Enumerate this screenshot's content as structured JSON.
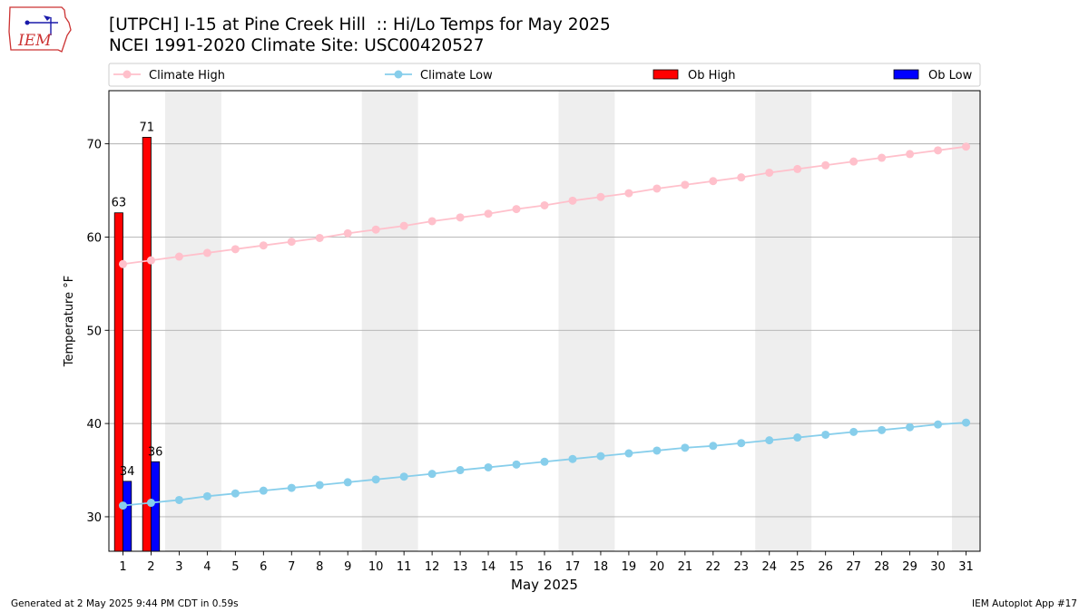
{
  "header": {
    "title_line1": "[UTPCH] I-15 at Pine Creek Hill  :: Hi/Lo Temps for May 2025",
    "title_line2": "NCEI 1991-2020 Climate Site: USC00420527",
    "logo_text": "IEM"
  },
  "footer": {
    "generated": "Generated at 2 May 2025 9:44 PM CDT in 0.59s",
    "app": "IEM Autoplot App #17"
  },
  "colors": {
    "climate_high": "#ffc0cb",
    "climate_low": "#87ceeb",
    "ob_high": "#ff0000",
    "ob_low": "#0000ff",
    "weekend_band": "#eeeeee",
    "grid": "#b0b0b0"
  },
  "chart_data": {
    "type": "bar",
    "title": "[UTPCH] I-15 at Pine Creek Hill  :: Hi/Lo Temps for May 2025",
    "subtitle": "NCEI 1991-2020 Climate Site: USC00420527",
    "xlabel": "May 2025",
    "ylabel": "Temperature °F",
    "xlim": [
      0.5,
      31.5
    ],
    "ylim": [
      26.3,
      75.7
    ],
    "yticks": [
      30,
      40,
      50,
      60,
      70
    ],
    "x": [
      1,
      2,
      3,
      4,
      5,
      6,
      7,
      8,
      9,
      10,
      11,
      12,
      13,
      14,
      15,
      16,
      17,
      18,
      19,
      20,
      21,
      22,
      23,
      24,
      25,
      26,
      27,
      28,
      29,
      30,
      31
    ],
    "weekend_bands": [
      [
        2.5,
        4.5
      ],
      [
        9.5,
        11.5
      ],
      [
        16.5,
        18.5
      ],
      [
        23.5,
        25.5
      ],
      [
        30.5,
        31.5
      ]
    ],
    "grid": "horizontal",
    "legend_position": "top, above plot",
    "legend": [
      "Climate High",
      "Climate Low",
      "Ob High",
      "Ob Low"
    ],
    "series": [
      {
        "name": "Climate High",
        "kind": "line",
        "values": [
          57.1,
          57.5,
          57.9,
          58.3,
          58.7,
          59.1,
          59.5,
          59.9,
          60.4,
          60.8,
          61.2,
          61.7,
          62.1,
          62.5,
          63.0,
          63.4,
          63.9,
          64.3,
          64.7,
          65.2,
          65.6,
          66.0,
          66.4,
          66.9,
          67.3,
          67.7,
          68.1,
          68.5,
          68.9,
          69.3,
          69.7
        ]
      },
      {
        "name": "Climate Low",
        "kind": "line",
        "values": [
          31.2,
          31.5,
          31.8,
          32.2,
          32.5,
          32.8,
          33.1,
          33.4,
          33.7,
          34.0,
          34.3,
          34.6,
          35.0,
          35.3,
          35.6,
          35.9,
          36.2,
          36.5,
          36.8,
          37.1,
          37.4,
          37.6,
          37.9,
          38.2,
          38.5,
          38.8,
          39.1,
          39.3,
          39.6,
          39.9,
          40.1
        ]
      },
      {
        "name": "Ob High",
        "kind": "bar",
        "x": [
          1,
          2
        ],
        "values": [
          62.6,
          70.7
        ],
        "labels": [
          "63",
          "71"
        ]
      },
      {
        "name": "Ob Low",
        "kind": "bar",
        "x": [
          1,
          2
        ],
        "values": [
          33.8,
          35.9
        ],
        "labels": [
          "34",
          "36"
        ]
      }
    ]
  }
}
